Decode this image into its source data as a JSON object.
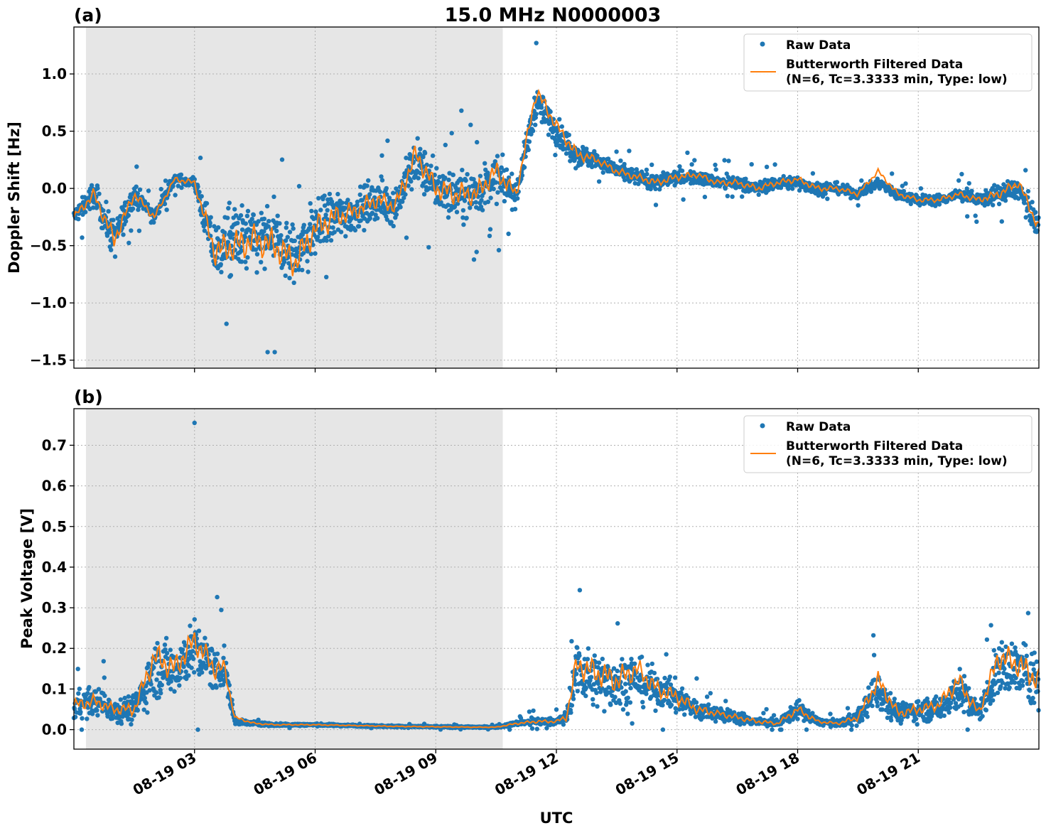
{
  "figure": {
    "title": "15.0 MHz N0000003",
    "xlabel": "UTC",
    "colors": {
      "raw": "#1f77b4",
      "filtered": "#ff7f0e",
      "night_shade": "#e6e6e6",
      "grid": "#b0b0b0"
    }
  },
  "chart_data": [
    {
      "type": "scatter",
      "panel_label": "(a)",
      "ylabel": "Doppler Shift [Hz]",
      "xlim": [
        "2023-08-19 00:00",
        "2023-08-20 00:00"
      ],
      "ylim": [
        -1.57,
        1.41
      ],
      "yticks": [
        -1.5,
        -1.0,
        -0.5,
        0.0,
        0.5,
        1.0
      ],
      "ytick_labels": [
        "−1.5",
        "−1.0",
        "−0.5",
        "0.0",
        "0.5",
        "1.0"
      ],
      "xticks": [
        "2023-08-19 03:00",
        "2023-08-19 06:00",
        "2023-08-19 09:00",
        "2023-08-19 12:00",
        "2023-08-19 15:00",
        "2023-08-19 18:00",
        "2023-08-19 21:00"
      ],
      "xtick_labels": [
        "08-19 03",
        "08-19 06",
        "08-19 09",
        "08-19 12",
        "08-19 15",
        "08-19 18",
        "08-19 21"
      ],
      "grid": true,
      "shaded_region": [
        "2023-08-19 00:18",
        "2023-08-19 10:40"
      ],
      "legend": {
        "position": "top-right",
        "entries": [
          "Raw Data",
          "Butterworth Filtered Data",
          "(N=6, Tc=3.3333 min, Type: low)"
        ]
      },
      "series": [
        {
          "name": "Raw Data",
          "style": "points",
          "x_hours": [
            0,
            0.5,
            1,
            1.5,
            2,
            2.5,
            3,
            3.5,
            4,
            4.5,
            5,
            5.5,
            6,
            6.5,
            7,
            7.5,
            8,
            8.5,
            9,
            9.5,
            10,
            10.5,
            11,
            11.5,
            12,
            12.5,
            13,
            13.5,
            14,
            14.5,
            15,
            15.5,
            16,
            16.5,
            17,
            17.5,
            18,
            18.5,
            19,
            19.5,
            20,
            20.5,
            21,
            21.5,
            22,
            22.5,
            23,
            23.5,
            24
          ],
          "center": [
            -0.25,
            -0.05,
            -0.45,
            -0.05,
            -0.25,
            0.08,
            0.05,
            -0.55,
            -0.45,
            -0.45,
            -0.45,
            -0.6,
            -0.35,
            -0.25,
            -0.2,
            -0.1,
            -0.15,
            0.25,
            0.0,
            -0.05,
            -0.05,
            0.1,
            -0.05,
            0.75,
            0.5,
            0.3,
            0.25,
            0.15,
            0.1,
            0.05,
            0.1,
            0.1,
            0.05,
            0.05,
            0.0,
            0.05,
            0.05,
            0.0,
            0.0,
            -0.05,
            0.05,
            -0.05,
            -0.1,
            -0.1,
            -0.05,
            -0.1,
            -0.05,
            0.0,
            -0.35
          ],
          "spread": [
            0.12,
            0.2,
            0.3,
            0.15,
            0.12,
            0.08,
            0.1,
            0.45,
            0.55,
            0.5,
            0.55,
            0.5,
            0.45,
            0.4,
            0.3,
            0.3,
            0.3,
            0.35,
            0.35,
            0.4,
            0.35,
            0.35,
            0.2,
            0.25,
            0.2,
            0.2,
            0.12,
            0.12,
            0.12,
            0.12,
            0.12,
            0.1,
            0.1,
            0.1,
            0.1,
            0.1,
            0.1,
            0.1,
            0.08,
            0.08,
            0.08,
            0.08,
            0.08,
            0.08,
            0.1,
            0.1,
            0.15,
            0.15,
            0.2
          ],
          "y_max": 1.27,
          "y_min": -1.43
        },
        {
          "name": "Butterworth Filtered Data",
          "style": "line",
          "x_hours": [
            0,
            0.5,
            1,
            1.5,
            2,
            2.5,
            3,
            3.5,
            4,
            4.5,
            5,
            5.5,
            6,
            6.5,
            7,
            7.5,
            8,
            8.5,
            9,
            9.5,
            10,
            10.5,
            11,
            11.5,
            12,
            12.5,
            13,
            13.5,
            14,
            14.5,
            15,
            15.5,
            16,
            16.5,
            17,
            17.5,
            18,
            18.5,
            19,
            19.5,
            20,
            20.5,
            21,
            21.5,
            22,
            22.5,
            23,
            23.5,
            24
          ],
          "values": [
            -0.25,
            -0.05,
            -0.45,
            -0.05,
            -0.25,
            0.08,
            0.05,
            -0.55,
            -0.5,
            -0.45,
            -0.5,
            -0.65,
            -0.35,
            -0.25,
            -0.2,
            -0.1,
            -0.15,
            0.3,
            0.0,
            -0.05,
            -0.05,
            0.15,
            -0.05,
            0.85,
            0.55,
            0.3,
            0.25,
            0.15,
            0.1,
            0.05,
            0.1,
            0.12,
            0.05,
            0.05,
            0.0,
            0.05,
            0.08,
            0.0,
            0.0,
            -0.05,
            0.15,
            -0.05,
            -0.1,
            -0.1,
            -0.05,
            -0.1,
            -0.05,
            0.05,
            -0.35
          ]
        }
      ]
    },
    {
      "type": "scatter",
      "panel_label": "(b)",
      "ylabel": "Peak Voltage [V]",
      "xlim": [
        "2023-08-19 00:00",
        "2023-08-20 00:00"
      ],
      "ylim": [
        -0.048,
        0.79
      ],
      "yticks": [
        0.0,
        0.1,
        0.2,
        0.3,
        0.4,
        0.5,
        0.6,
        0.7
      ],
      "ytick_labels": [
        "0.0",
        "0.1",
        "0.2",
        "0.3",
        "0.4",
        "0.5",
        "0.6",
        "0.7"
      ],
      "xticks": [
        "2023-08-19 03:00",
        "2023-08-19 06:00",
        "2023-08-19 09:00",
        "2023-08-19 12:00",
        "2023-08-19 15:00",
        "2023-08-19 18:00",
        "2023-08-19 21:00"
      ],
      "xtick_labels": [
        "08-19 03",
        "08-19 06",
        "08-19 09",
        "08-19 12",
        "08-19 15",
        "08-19 18",
        "08-19 21"
      ],
      "grid": true,
      "shaded_region": [
        "2023-08-19 00:18",
        "2023-08-19 10:40"
      ],
      "legend": {
        "position": "top-right",
        "entries": [
          "Raw Data",
          "Butterworth Filtered Data",
          "(N=6, Tc=3.3333 min, Type: low)"
        ]
      },
      "series": [
        {
          "name": "Raw Data",
          "style": "points",
          "x_hours": [
            0,
            0.5,
            1,
            1.5,
            2,
            2.5,
            3,
            3.5,
            3.75,
            4,
            4.5,
            5,
            6,
            7,
            8,
            9,
            10,
            10.5,
            11,
            11.5,
            12,
            12.25,
            12.5,
            13,
            13.5,
            14,
            14.5,
            15,
            15.5,
            16,
            16.5,
            17,
            17.5,
            18,
            18.5,
            19,
            19.5,
            20,
            20.5,
            21,
            21.5,
            22,
            22.5,
            23,
            23.5,
            24
          ],
          "center": [
            0.06,
            0.07,
            0.05,
            0.05,
            0.15,
            0.15,
            0.2,
            0.15,
            0.15,
            0.02,
            0.015,
            0.012,
            0.012,
            0.01,
            0.008,
            0.007,
            0.006,
            0.006,
            0.015,
            0.02,
            0.02,
            0.03,
            0.15,
            0.12,
            0.12,
            0.12,
            0.1,
            0.08,
            0.05,
            0.04,
            0.03,
            0.02,
            0.015,
            0.05,
            0.02,
            0.015,
            0.03,
            0.1,
            0.04,
            0.05,
            0.05,
            0.1,
            0.04,
            0.15,
            0.15,
            0.12
          ],
          "spread": [
            0.06,
            0.06,
            0.05,
            0.06,
            0.12,
            0.12,
            0.12,
            0.1,
            0.08,
            0.015,
            0.008,
            0.006,
            0.005,
            0.004,
            0.004,
            0.004,
            0.003,
            0.003,
            0.01,
            0.015,
            0.015,
            0.03,
            0.12,
            0.12,
            0.12,
            0.1,
            0.08,
            0.07,
            0.04,
            0.03,
            0.025,
            0.02,
            0.015,
            0.04,
            0.015,
            0.012,
            0.03,
            0.09,
            0.04,
            0.05,
            0.05,
            0.1,
            0.04,
            0.12,
            0.12,
            0.12
          ],
          "y_max": 0.755,
          "y_min": 0.0
        },
        {
          "name": "Butterworth Filtered Data",
          "style": "line",
          "x_hours": [
            0,
            0.5,
            1,
            1.5,
            2,
            2.5,
            3,
            3.5,
            3.75,
            4,
            4.5,
            5,
            6,
            7,
            8,
            9,
            10,
            10.5,
            11,
            11.5,
            12,
            12.25,
            12.5,
            13,
            13.5,
            14,
            14.5,
            15,
            15.5,
            16,
            16.5,
            17,
            17.5,
            18,
            18.5,
            19,
            19.5,
            20,
            20.5,
            21,
            21.5,
            22,
            22.5,
            23,
            23.5,
            24
          ],
          "values": [
            0.06,
            0.07,
            0.05,
            0.05,
            0.18,
            0.15,
            0.22,
            0.15,
            0.15,
            0.03,
            0.015,
            0.012,
            0.012,
            0.01,
            0.008,
            0.007,
            0.006,
            0.006,
            0.015,
            0.02,
            0.02,
            0.03,
            0.16,
            0.14,
            0.12,
            0.15,
            0.1,
            0.08,
            0.05,
            0.04,
            0.03,
            0.02,
            0.015,
            0.05,
            0.02,
            0.015,
            0.03,
            0.12,
            0.04,
            0.05,
            0.06,
            0.12,
            0.04,
            0.18,
            0.16,
            0.12
          ]
        }
      ]
    }
  ]
}
